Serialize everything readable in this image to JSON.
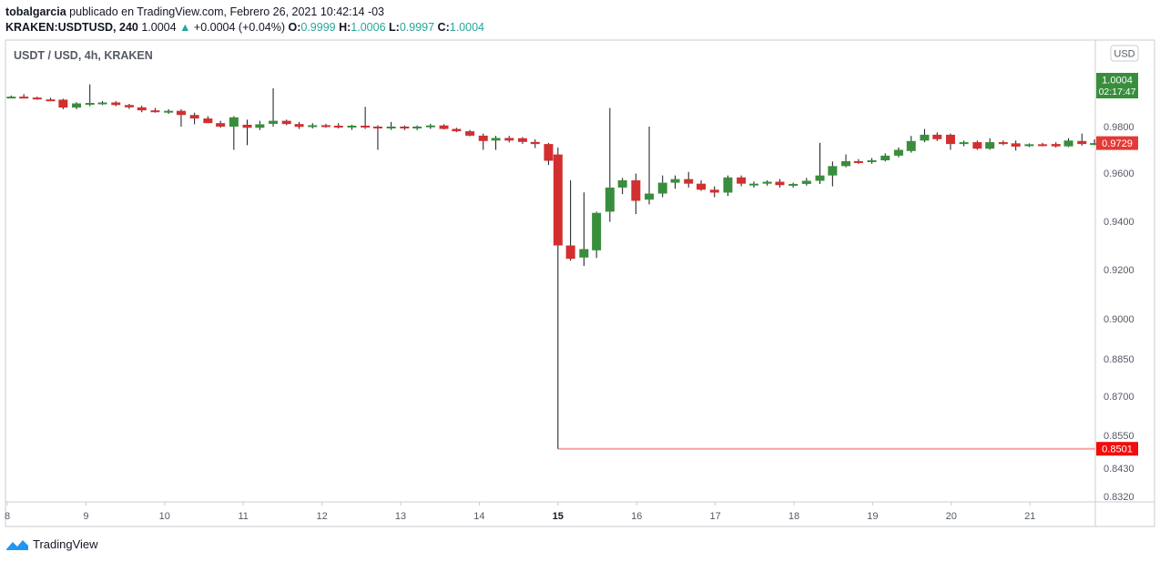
{
  "header": {
    "user": "tobalgarcia",
    "published": "publicado en TradingView.com, Febrero 26, 2021 10:42:14 -03"
  },
  "quote": {
    "symbol": "KRAKEN:USDTUSD, 240",
    "last": "1.0004",
    "change_arrow": "▲",
    "change": "+0.0004 (+0.04%)",
    "o_label": "O:",
    "o": "0.9999",
    "h_label": "H:",
    "h": "1.0006",
    "l_label": "L:",
    "l": "0.9997",
    "c_label": "C:",
    "c": "1.0004"
  },
  "chart_title": "USDT / USD, 4h, KRAKEN",
  "currency_button": "USD",
  "brand": "TradingView",
  "colors": {
    "up": "#388e3c",
    "down": "#d32f2f",
    "last_tag": "#388e3c",
    "close_tag": "#e53935",
    "low_tag": "#f20c0c",
    "low_line": "#f5a3a3",
    "axis_text": "#555a66",
    "border": "#c9ccd3"
  },
  "chart_data": {
    "type": "candlestick",
    "y_axis": {
      "ticks": [
        0.832,
        0.843,
        0.855,
        0.87,
        0.885,
        0.9,
        0.92,
        0.94,
        0.96,
        0.98
      ],
      "tick_labels": [
        "0.8320",
        "0.8430",
        "0.8550",
        "0.8700",
        "0.8850",
        "0.9000",
        "0.9200",
        "0.9400",
        "0.9600",
        "0.9800"
      ]
    },
    "x_axis": {
      "tick_labels": [
        "8",
        "9",
        "10",
        "11",
        "12",
        "13",
        "14",
        "15",
        "16",
        "17",
        "18",
        "19",
        "20",
        "21"
      ],
      "bold_label": "15"
    },
    "price_tags": [
      {
        "label": "1.0004",
        "sub": "02:17:47",
        "value": 1.0004,
        "kind": "last"
      },
      {
        "label": "0.9729",
        "value": 0.9729,
        "kind": "close"
      },
      {
        "label": "0.8501",
        "value": 0.8501,
        "kind": "low"
      }
    ],
    "low_line_value": 0.8501,
    "low_line_from_date": 15,
    "candles": [
      [
        8.05,
        0.9928,
        0.9934,
        0.9922,
        0.9929
      ],
      [
        8.21,
        0.9929,
        0.994,
        0.9921,
        0.9925
      ],
      [
        8.38,
        0.9925,
        0.9929,
        0.9916,
        0.9917
      ],
      [
        8.55,
        0.9917,
        0.9924,
        0.991,
        0.9916
      ],
      [
        8.71,
        0.9916,
        0.992,
        0.9875,
        0.9882
      ],
      [
        8.88,
        0.9882,
        0.9905,
        0.9875,
        0.99
      ],
      [
        9.05,
        0.9898,
        0.9982,
        0.9888,
        0.9902
      ],
      [
        9.21,
        0.99,
        0.991,
        0.9893,
        0.9904
      ],
      [
        9.38,
        0.9904,
        0.991,
        0.9888,
        0.9893
      ],
      [
        9.55,
        0.9893,
        0.9898,
        0.9876,
        0.9883
      ],
      [
        9.71,
        0.9883,
        0.989,
        0.9862,
        0.987
      ],
      [
        9.88,
        0.987,
        0.988,
        0.986,
        0.9862
      ],
      [
        10.05,
        0.9862,
        0.9875,
        0.9855,
        0.9868
      ],
      [
        10.21,
        0.9868,
        0.9875,
        0.98,
        0.985
      ],
      [
        10.38,
        0.985,
        0.986,
        0.981,
        0.9835
      ],
      [
        10.55,
        0.9835,
        0.9845,
        0.9815,
        0.9815
      ],
      [
        10.71,
        0.9815,
        0.9825,
        0.9795,
        0.98
      ],
      [
        10.88,
        0.98,
        0.9845,
        0.97,
        0.984
      ],
      [
        11.05,
        0.9808,
        0.983,
        0.972,
        0.9795
      ],
      [
        11.21,
        0.9795,
        0.9825,
        0.9785,
        0.981
      ],
      [
        11.38,
        0.9812,
        0.9965,
        0.98,
        0.9825
      ],
      [
        11.55,
        0.9825,
        0.983,
        0.9806,
        0.9811
      ],
      [
        11.71,
        0.9811,
        0.982,
        0.979,
        0.9799
      ],
      [
        11.88,
        0.98,
        0.9815,
        0.9792,
        0.9806
      ],
      [
        12.05,
        0.9806,
        0.9812,
        0.9795,
        0.9804
      ],
      [
        12.21,
        0.9804,
        0.9815,
        0.9792,
        0.9796
      ],
      [
        12.38,
        0.9796,
        0.9808,
        0.9786,
        0.9804
      ],
      [
        12.55,
        0.9804,
        0.9885,
        0.979,
        0.98
      ],
      [
        12.71,
        0.98,
        0.9806,
        0.97,
        0.9796
      ],
      [
        12.88,
        0.9796,
        0.982,
        0.9786,
        0.98
      ],
      [
        13.05,
        0.98,
        0.9805,
        0.9785,
        0.9793
      ],
      [
        13.21,
        0.9793,
        0.9805,
        0.9785,
        0.98
      ],
      [
        13.38,
        0.98,
        0.9812,
        0.979,
        0.9805
      ],
      [
        13.55,
        0.9805,
        0.981,
        0.9788,
        0.979
      ],
      [
        13.71,
        0.979,
        0.9795,
        0.9776,
        0.978
      ],
      [
        13.88,
        0.978,
        0.9786,
        0.9758,
        0.9761
      ],
      [
        14.05,
        0.9761,
        0.977,
        0.97,
        0.9738
      ],
      [
        14.21,
        0.974,
        0.976,
        0.97,
        0.9751
      ],
      [
        14.38,
        0.9751,
        0.976,
        0.9732,
        0.974
      ],
      [
        14.55,
        0.975,
        0.9755,
        0.9725,
        0.9734
      ],
      [
        14.71,
        0.9734,
        0.9745,
        0.9708,
        0.9725
      ],
      [
        14.88,
        0.9725,
        0.973,
        0.9635,
        0.9653
      ],
      [
        15.0,
        0.968,
        0.971,
        0.8501,
        0.93
      ],
      [
        15.16,
        0.93,
        0.957,
        0.9237,
        0.9245
      ],
      [
        15.33,
        0.925,
        0.952,
        0.9215,
        0.9285
      ],
      [
        15.49,
        0.928,
        0.944,
        0.9248,
        0.9435
      ],
      [
        15.66,
        0.944,
        0.988,
        0.9398,
        0.954
      ],
      [
        15.82,
        0.954,
        0.958,
        0.9513,
        0.957
      ],
      [
        15.99,
        0.957,
        0.9598,
        0.943,
        0.9485
      ],
      [
        16.16,
        0.949,
        0.98,
        0.947,
        0.9515
      ],
      [
        16.33,
        0.9515,
        0.959,
        0.95,
        0.956
      ],
      [
        16.49,
        0.956,
        0.959,
        0.9535,
        0.9575
      ],
      [
        16.66,
        0.9575,
        0.9605,
        0.954,
        0.9556
      ],
      [
        16.82,
        0.9556,
        0.957,
        0.9526,
        0.9531
      ],
      [
        16.99,
        0.9531,
        0.9545,
        0.95,
        0.9519
      ],
      [
        17.16,
        0.9519,
        0.959,
        0.9505,
        0.9582
      ],
      [
        17.33,
        0.9582,
        0.959,
        0.9545,
        0.9556
      ],
      [
        17.49,
        0.9556,
        0.9565,
        0.954,
        0.9556
      ],
      [
        17.66,
        0.9556,
        0.957,
        0.9548,
        0.9564
      ],
      [
        17.82,
        0.9564,
        0.9575,
        0.954,
        0.955
      ],
      [
        17.99,
        0.955,
        0.956,
        0.954,
        0.9555
      ],
      [
        18.16,
        0.9555,
        0.958,
        0.9548,
        0.9568
      ],
      [
        18.33,
        0.9568,
        0.973,
        0.9555,
        0.959
      ],
      [
        18.49,
        0.959,
        0.965,
        0.9545,
        0.963
      ],
      [
        18.66,
        0.963,
        0.968,
        0.9625,
        0.9651
      ],
      [
        18.82,
        0.9651,
        0.966,
        0.964,
        0.965
      ],
      [
        18.99,
        0.965,
        0.9665,
        0.964,
        0.9655
      ],
      [
        19.16,
        0.9655,
        0.9685,
        0.965,
        0.9675
      ],
      [
        19.33,
        0.9675,
        0.971,
        0.9668,
        0.97
      ],
      [
        19.49,
        0.9695,
        0.976,
        0.9688,
        0.9738
      ],
      [
        19.66,
        0.974,
        0.979,
        0.9733,
        0.9765
      ],
      [
        19.82,
        0.9765,
        0.9775,
        0.9738,
        0.9746
      ],
      [
        19.99,
        0.9765,
        0.977,
        0.97,
        0.9725
      ],
      [
        20.16,
        0.9725,
        0.974,
        0.9715,
        0.9733
      ],
      [
        20.33,
        0.9733,
        0.974,
        0.97,
        0.9705
      ],
      [
        20.49,
        0.9705,
        0.975,
        0.97,
        0.9733
      ],
      [
        20.66,
        0.9733,
        0.974,
        0.972,
        0.9725
      ],
      [
        20.82,
        0.9728,
        0.974,
        0.9697,
        0.9714
      ],
      [
        20.99,
        0.9716,
        0.9728,
        0.9712,
        0.9724
      ],
      [
        21.16,
        0.9724,
        0.973,
        0.9715,
        0.9721
      ],
      [
        21.33,
        0.9725,
        0.9733,
        0.971,
        0.9715
      ],
      [
        21.49,
        0.9715,
        0.975,
        0.9712,
        0.974
      ],
      [
        21.66,
        0.9738,
        0.977,
        0.9718,
        0.9725
      ],
      [
        21.82,
        0.9729,
        0.9745,
        0.972,
        0.9729
      ]
    ]
  }
}
